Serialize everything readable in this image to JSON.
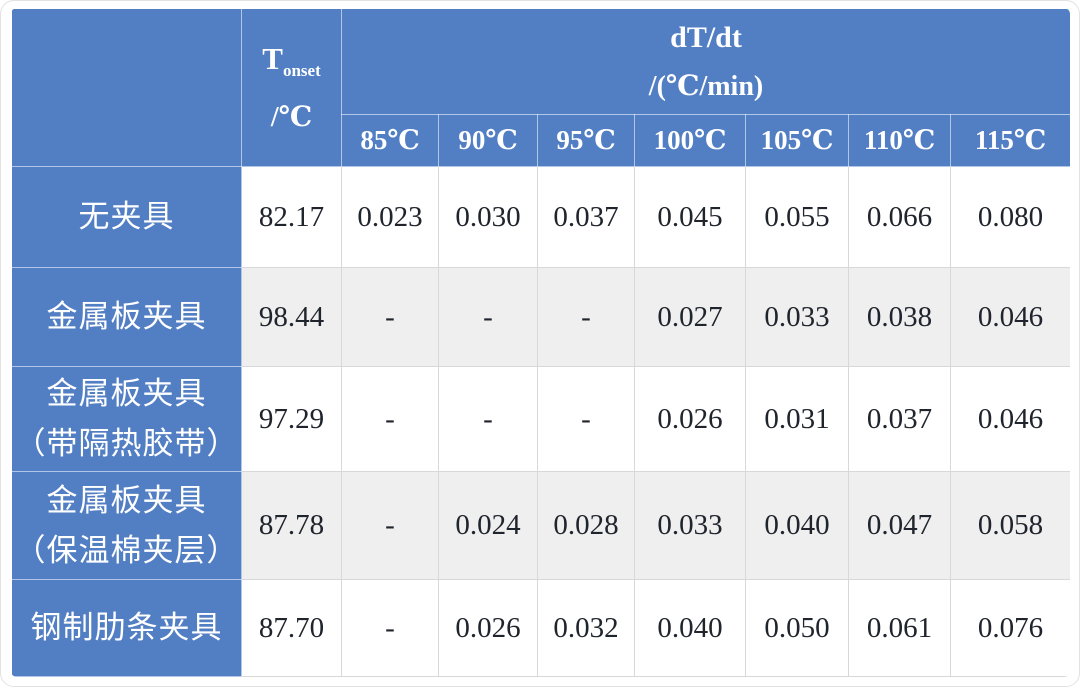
{
  "colors": {
    "header_blue": "#527FC4",
    "stripe_gray": "#EFEFEF",
    "grid_line": "#D8D8D8",
    "body_text": "#20242C",
    "header_text": "#FFFFFF"
  },
  "table": {
    "tonset_header": {
      "symbol": "T",
      "subscript": "onset",
      "unit": "/℃"
    },
    "dtdt_header": {
      "title": "dT/dt",
      "unit": "/(℃/min)"
    },
    "temp_headers": [
      "85℃",
      "90℃",
      "95℃",
      "100℃",
      "105℃",
      "110℃",
      "115℃"
    ],
    "rows": [
      {
        "label_lines": [
          "无夹具"
        ],
        "tonset": "82.17",
        "values": [
          "0.023",
          "0.030",
          "0.037",
          "0.045",
          "0.055",
          "0.066",
          "0.080"
        ]
      },
      {
        "label_lines": [
          "金属板夹具"
        ],
        "tonset": "98.44",
        "values": [
          "-",
          "-",
          "-",
          "0.027",
          "0.033",
          "0.038",
          "0.046"
        ]
      },
      {
        "label_lines": [
          "金属板夹具",
          "（带隔热胶带）"
        ],
        "tonset": "97.29",
        "values": [
          "-",
          "-",
          "-",
          "0.026",
          "0.031",
          "0.037",
          "0.046"
        ]
      },
      {
        "label_lines": [
          "金属板夹具",
          "（保温棉夹层）"
        ],
        "tonset": "87.78",
        "values": [
          "-",
          "0.024",
          "0.028",
          "0.033",
          "0.040",
          "0.047",
          "0.058"
        ]
      },
      {
        "label_lines": [
          "钢制肋条夹具"
        ],
        "tonset": "87.70",
        "values": [
          "-",
          "0.026",
          "0.032",
          "0.040",
          "0.050",
          "0.061",
          "0.076"
        ]
      }
    ]
  },
  "chart_data": {
    "type": "table",
    "title": "",
    "column_groups": {
      "tonset": "T onset /℃",
      "dtdt": "dT/dt /(℃/min)"
    },
    "temp_conditions_c": [
      85,
      90,
      95,
      100,
      105,
      110,
      115
    ],
    "rows": [
      {
        "fixture": "无夹具",
        "tonset_c": 82.17,
        "dTdt": [
          0.023,
          0.03,
          0.037,
          0.045,
          0.055,
          0.066,
          0.08
        ]
      },
      {
        "fixture": "金属板夹具",
        "tonset_c": 98.44,
        "dTdt": [
          null,
          null,
          null,
          0.027,
          0.033,
          0.038,
          0.046
        ]
      },
      {
        "fixture": "金属板夹具（带隔热胶带）",
        "tonset_c": 97.29,
        "dTdt": [
          null,
          null,
          null,
          0.026,
          0.031,
          0.037,
          0.046
        ]
      },
      {
        "fixture": "金属板夹具（保温棉夹层）",
        "tonset_c": 87.78,
        "dTdt": [
          null,
          0.024,
          0.028,
          0.033,
          0.04,
          0.047,
          0.058
        ]
      },
      {
        "fixture": "钢制肋条夹具",
        "tonset_c": 87.7,
        "dTdt": [
          null,
          0.026,
          0.032,
          0.04,
          0.05,
          0.061,
          0.076
        ]
      }
    ]
  }
}
